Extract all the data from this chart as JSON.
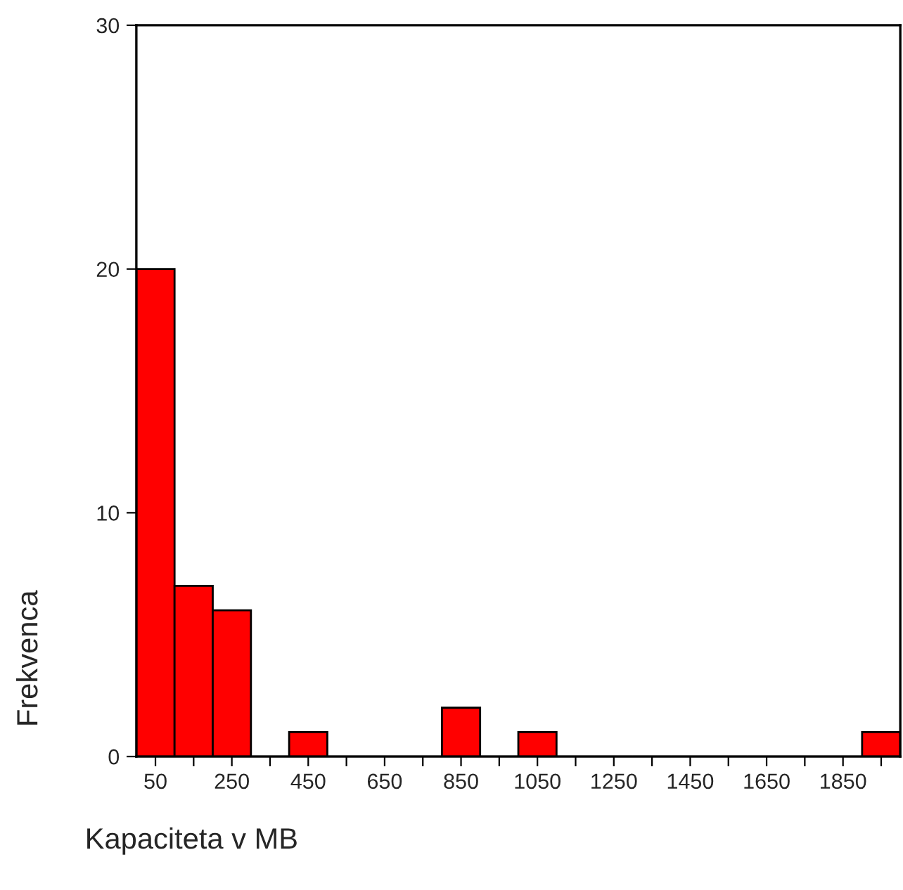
{
  "chart_data": {
    "type": "histogram",
    "xlabel": "Kapaciteta v MB",
    "ylabel": "Frekvenca",
    "bins": [
      0,
      100,
      200,
      300,
      400,
      500,
      600,
      700,
      800,
      900,
      1000,
      1100,
      1200,
      1300,
      1400,
      1500,
      1600,
      1700,
      1800,
      1900,
      2000
    ],
    "values": [
      20,
      7,
      6,
      0,
      1,
      0,
      0,
      0,
      2,
      0,
      1,
      0,
      0,
      0,
      0,
      0,
      0,
      0,
      0,
      1
    ],
    "color": "#ff0000",
    "xlim": [
      0,
      2000
    ],
    "xticks": [
      50,
      {
        "value": 150,
        "label": null
      },
      250,
      {
        "value": 350,
        "label": null
      },
      450,
      {
        "value": 550,
        "label": null
      },
      650,
      {
        "value": 750,
        "label": null
      },
      850,
      {
        "value": 950,
        "label": null
      },
      1050,
      {
        "value": 1150,
        "label": null
      },
      1250,
      {
        "value": 1350,
        "label": null
      },
      1450,
      {
        "value": 1550,
        "label": null
      },
      1650,
      {
        "value": 1750,
        "label": null
      },
      1850,
      {
        "value": 1950,
        "label": null
      }
    ],
    "ylim": [
      0,
      30
    ],
    "yticks": [
      0,
      10,
      20,
      30
    ],
    "grid": false,
    "legend": false
  }
}
